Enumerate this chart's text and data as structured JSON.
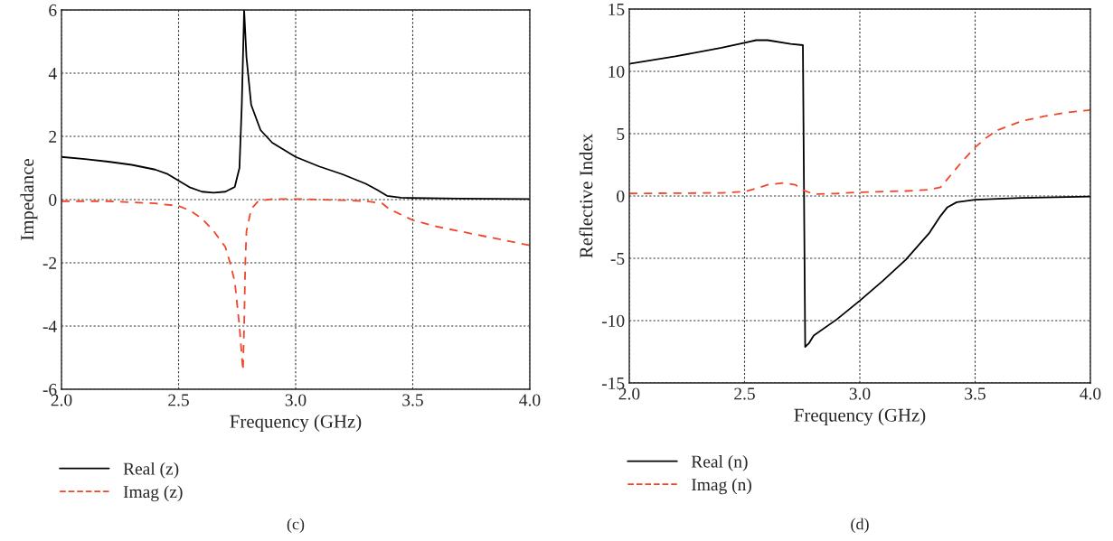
{
  "chart_data": [
    {
      "type": "line",
      "xlabel": "Frequency (GHz)",
      "ylabel": "Impedance",
      "xlim": [
        2.0,
        4.0
      ],
      "ylim": [
        -6,
        6
      ],
      "xticks": [
        {
          "value": 2.0,
          "label": "2.0"
        },
        {
          "value": 2.5,
          "label": "2.5"
        },
        {
          "value": 3.0,
          "label": "3.0"
        },
        {
          "value": 3.5,
          "label": "3.5"
        },
        {
          "value": 4.0,
          "label": "4.0"
        }
      ],
      "yticks": [
        -6,
        -4,
        -2,
        0,
        2,
        4,
        6
      ],
      "grid": true,
      "legend": "bottom left",
      "annotations": [
        "(c)"
      ],
      "series": [
        {
          "name": "Real (z)",
          "color": "#000000",
          "line_style": "solid",
          "x": [
            2.0,
            2.1,
            2.2,
            2.3,
            2.4,
            2.45,
            2.5,
            2.55,
            2.6,
            2.65,
            2.7,
            2.74,
            2.76,
            2.77,
            2.78,
            2.79,
            2.81,
            2.85,
            2.9,
            3.0,
            3.1,
            3.2,
            3.3,
            3.35,
            3.39,
            3.45,
            3.5,
            3.7,
            4.0
          ],
          "values": [
            1.35,
            1.28,
            1.2,
            1.1,
            0.95,
            0.82,
            0.6,
            0.38,
            0.25,
            0.22,
            0.25,
            0.4,
            1.0,
            3.0,
            6.0,
            4.5,
            3.0,
            2.2,
            1.8,
            1.35,
            1.05,
            0.8,
            0.5,
            0.3,
            0.12,
            0.06,
            0.05,
            0.03,
            0.02
          ]
        },
        {
          "name": "Imag (z)",
          "color": "#f0462a",
          "line_style": "dashed",
          "x": [
            2.0,
            2.2,
            2.4,
            2.5,
            2.55,
            2.6,
            2.65,
            2.7,
            2.72,
            2.74,
            2.76,
            2.775,
            2.78,
            2.785,
            2.79,
            2.81,
            2.84,
            2.9,
            3.0,
            3.2,
            3.3,
            3.37,
            3.4,
            3.5,
            3.6,
            3.7,
            3.8,
            3.9,
            4.0
          ],
          "values": [
            -0.05,
            -0.05,
            -0.12,
            -0.2,
            -0.35,
            -0.6,
            -1.0,
            -1.5,
            -2.0,
            -2.6,
            -4.0,
            -5.4,
            -4.0,
            -2.0,
            -1.0,
            -0.3,
            -0.05,
            0.02,
            0.02,
            -0.02,
            -0.05,
            -0.12,
            -0.3,
            -0.65,
            -0.85,
            -1.0,
            -1.15,
            -1.3,
            -1.45
          ]
        }
      ]
    },
    {
      "type": "line",
      "xlabel": "Frequency (GHz)",
      "ylabel": "Reflective Index",
      "xlim": [
        2.0,
        4.0
      ],
      "ylim": [
        -15,
        15
      ],
      "xticks": [
        {
          "value": 2.0,
          "label": "2.0"
        },
        {
          "value": 2.5,
          "label": "2.5"
        },
        {
          "value": 3.0,
          "label": "3.0"
        },
        {
          "value": 3.5,
          "label": "3.5"
        },
        {
          "value": 4.0,
          "label": "4.0"
        }
      ],
      "yticks": [
        -15,
        -10,
        -5,
        0,
        5,
        10,
        15
      ],
      "grid": true,
      "legend": "bottom left",
      "annotations": [
        "(d)"
      ],
      "series": [
        {
          "name": "Real (n)",
          "color": "#000000",
          "line_style": "solid",
          "x": [
            2.0,
            2.2,
            2.4,
            2.5,
            2.55,
            2.6,
            2.7,
            2.753,
            2.763,
            2.78,
            2.8,
            2.9,
            3.0,
            3.1,
            3.2,
            3.3,
            3.35,
            3.38,
            3.42,
            3.5,
            3.7,
            4.0
          ],
          "values": [
            10.6,
            11.2,
            11.9,
            12.3,
            12.5,
            12.5,
            12.2,
            12.1,
            -12.1,
            -11.8,
            -11.2,
            -9.9,
            -8.4,
            -6.8,
            -5.1,
            -3.0,
            -1.6,
            -0.9,
            -0.5,
            -0.3,
            -0.15,
            -0.05
          ]
        },
        {
          "name": "Imag (n)",
          "color": "#f0462a",
          "line_style": "dashed",
          "x": [
            2.0,
            2.4,
            2.5,
            2.55,
            2.6,
            2.67,
            2.72,
            2.75,
            2.8,
            2.9,
            3.0,
            3.2,
            3.3,
            3.35,
            3.4,
            3.45,
            3.5,
            3.55,
            3.6,
            3.7,
            3.8,
            3.9,
            4.0
          ],
          "values": [
            0.2,
            0.25,
            0.35,
            0.6,
            0.9,
            1.05,
            0.9,
            0.5,
            0.15,
            0.2,
            0.3,
            0.4,
            0.5,
            0.7,
            1.8,
            2.9,
            3.9,
            4.7,
            5.3,
            6.0,
            6.4,
            6.7,
            6.9
          ]
        }
      ]
    }
  ]
}
